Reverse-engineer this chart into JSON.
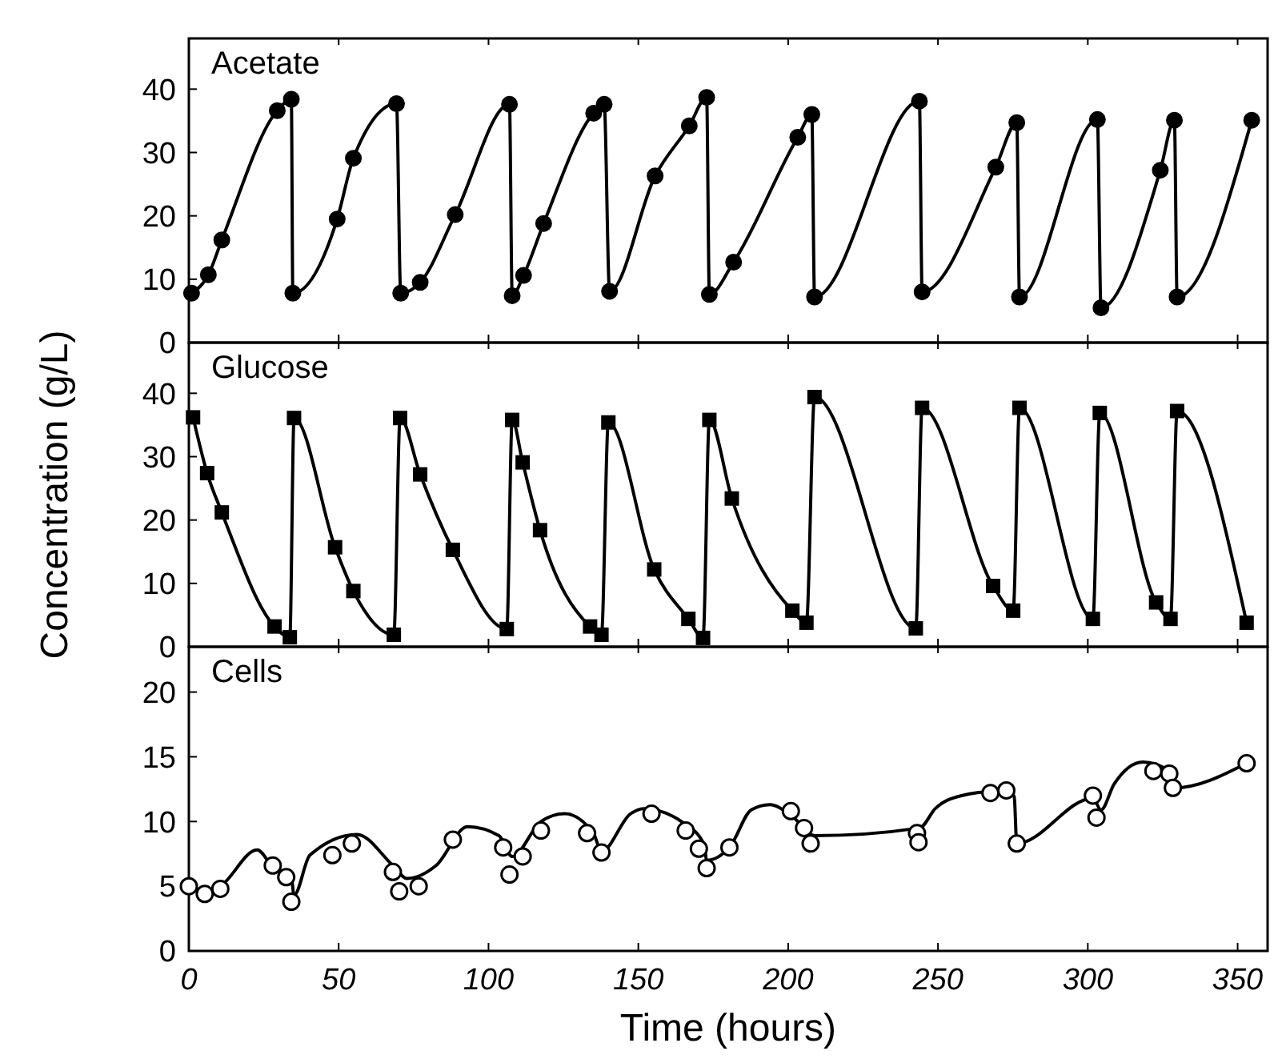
{
  "chart_data": [
    {
      "type": "line",
      "title": "Acetate",
      "xlim": [
        0,
        360
      ],
      "xticks": [
        0,
        50,
        100,
        150,
        200,
        250,
        300,
        350
      ],
      "ylim": [
        0,
        48
      ],
      "yticks": [
        0,
        10,
        20,
        30,
        40
      ],
      "tick_labels": "y",
      "marker": "circle",
      "series": [
        {
          "color": "#000000",
          "x": [
            0.9,
            6.5,
            11,
            29.5,
            34.2,
            34.7,
            49.5,
            54.9,
            69.3,
            70.7,
            77.2,
            88.9,
            107,
            107.9,
            111.7,
            118.4,
            135.1,
            138.6,
            140.4,
            155.6,
            167,
            172.8,
            173.7,
            181.8,
            203.2,
            207.9,
            208.8,
            243.8,
            244.7,
            269.3,
            276.3,
            277.2,
            303.2,
            304.4,
            324.2,
            328.9,
            329.8,
            354.7
          ],
          "values": [
            7.8,
            10.7,
            16.2,
            36.6,
            38.4,
            7.8,
            19.5,
            29.1,
            37.7,
            7.8,
            9.5,
            20.2,
            37.6,
            7.4,
            10.6,
            18.8,
            36.2,
            37.6,
            8.1,
            26.3,
            34.2,
            38.7,
            7.6,
            12.7,
            32.4,
            36,
            7.2,
            38.1,
            8,
            27.7,
            34.7,
            7.2,
            35.2,
            5.5,
            27.2,
            35.1,
            7.2,
            35.1
          ]
        }
      ]
    },
    {
      "type": "line",
      "title": "Glucose",
      "ylabel": "Concentration (g/L)",
      "xlim": [
        0,
        360
      ],
      "xticks": [
        0,
        50,
        100,
        150,
        200,
        250,
        300,
        350
      ],
      "ylim": [
        0,
        48
      ],
      "yticks": [
        0,
        10,
        20,
        30,
        40
      ],
      "tick_labels": "y",
      "marker": "square",
      "series": [
        {
          "color": "#000000",
          "x": [
            1.4,
            6.1,
            11,
            28.6,
            33.7,
            35.1,
            48.8,
            54.9,
            68.4,
            70.5,
            77.2,
            88.1,
            106.1,
            107.9,
            111.4,
            117.2,
            133.9,
            137.7,
            140,
            155.3,
            166.7,
            171.6,
            173.7,
            181.2,
            201.4,
            206.1,
            208.8,
            242.6,
            244.7,
            268.4,
            275.1,
            277.2,
            301.7,
            304,
            322.8,
            327.6,
            329.8,
            353
          ],
          "values": [
            36.2,
            27.4,
            21.2,
            3.2,
            1.5,
            36.1,
            15.7,
            8.8,
            1.9,
            36.1,
            27.2,
            15.3,
            2.8,
            35.8,
            29.1,
            18.4,
            3.2,
            1.9,
            35.4,
            12.2,
            4.4,
            1.4,
            35.8,
            23.4,
            5.7,
            3.8,
            39.4,
            2.9,
            37.7,
            9.6,
            5.7,
            37.7,
            4.4,
            36.9,
            7,
            4.4,
            37.2,
            3.8
          ]
        }
      ]
    },
    {
      "type": "line",
      "title": "Cells",
      "xlabel": "Time (hours)",
      "xlim": [
        0,
        360
      ],
      "xticks": [
        0,
        50,
        100,
        150,
        200,
        250,
        300,
        350
      ],
      "ylim": [
        0,
        23.5
      ],
      "yticks": [
        0,
        5,
        10,
        15,
        20
      ],
      "series": [
        {
          "marker": "none",
          "color": "#000000",
          "x": [
            0,
            7,
            10.5,
            22.8,
            28,
            34.2,
            35.1,
            40.4,
            56.1,
            68.1,
            72.8,
            82.5,
            93,
            103.5,
            107.9,
            117.5,
            125.4,
            135,
            137.7,
            147.4,
            151.8,
            165,
            172,
            172.8,
            180.7,
            187.7,
            193.9,
            201.8,
            208.8,
            243.9,
            249.1,
            257.9,
            268.4,
            275.4,
            276.3,
            301.7,
            304.4,
            308.8,
            318.4,
            327.2,
            328.9,
            353
          ],
          "values": [
            5,
            4.6,
            5,
            7.8,
            6.5,
            5.7,
            4.3,
            7.4,
            9,
            6.6,
            5.6,
            6.6,
            9.6,
            8.9,
            7.3,
            10,
            10.6,
            9.1,
            7.7,
            10.6,
            11,
            9.9,
            8.2,
            7,
            8.1,
            10.9,
            11.3,
            10.3,
            8.9,
            9.5,
            11,
            12,
            12.3,
            12,
            8.3,
            11.8,
            10.9,
            12.9,
            14.6,
            13.9,
            12.6,
            14.5
          ]
        },
        {
          "type": "scatter",
          "marker": "circle",
          "color": "#000000",
          "x": [
            0,
            5.3,
            10.5,
            28,
            32.5,
            34.2,
            47.9,
            54.4,
            68.1,
            70.2,
            76.7,
            88.1,
            104.9,
            107,
            111.4,
            117.5,
            132.9,
            137.7,
            154.4,
            165.8,
            170.2,
            172.8,
            180.4,
            200.9,
            205.3,
            207.5,
            243,
            243.5,
            267.5,
            272.8,
            276.3,
            301.7,
            302.9,
            321.9,
            327.2,
            328.4,
            353
          ],
          "values": [
            5,
            4.4,
            4.8,
            6.6,
            5.7,
            3.8,
            7.4,
            8.3,
            6.1,
            4.6,
            5,
            8.6,
            8,
            5.9,
            7.3,
            9.3,
            9.1,
            7.6,
            10.6,
            9.3,
            7.9,
            6.4,
            8,
            10.8,
            9.5,
            8.3,
            9.1,
            8.4,
            12.2,
            12.4,
            8.3,
            12,
            10.3,
            13.9,
            13.7,
            12.6,
            14.5
          ]
        }
      ]
    }
  ]
}
